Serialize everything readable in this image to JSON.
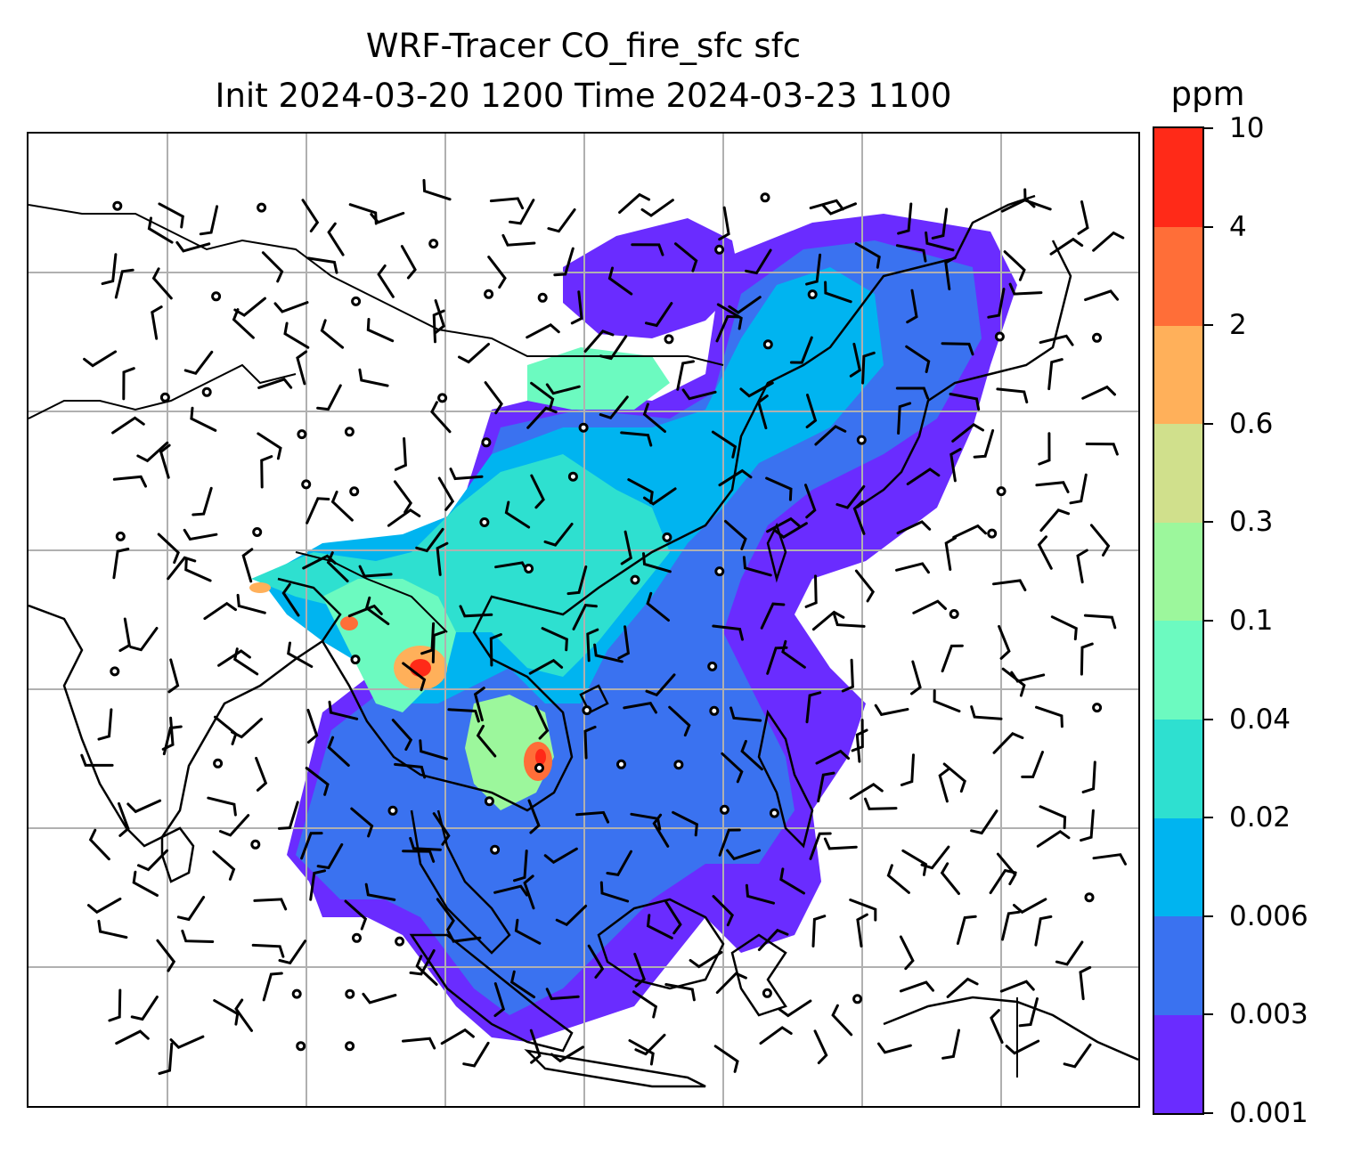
{
  "title": {
    "line1": "WRF-Tracer CO_fire_sfc sfc",
    "line2": "Init 2024-03-20 1200 Time 2024-03-23 1100"
  },
  "colorbar": {
    "unit": "ppm",
    "ticks": [
      "0.001",
      "0.003",
      "0.006",
      "0.02",
      "0.04",
      "0.1",
      "0.3",
      "0.6",
      "2",
      "4",
      "10"
    ],
    "colors": [
      "#6a2cff",
      "#3a72f0",
      "#00b4f0",
      "#2ee0d0",
      "#6cfac0",
      "#9cf79c",
      "#d0e08c",
      "#ffb05a",
      "#ff6e38",
      "#ff2a18"
    ]
  },
  "map": {
    "variable": "CO_fire_sfc",
    "level": "sfc",
    "field_colors": {
      "low": "#6a2cff",
      "mid": "#3a72f0",
      "cyan": "#00b4f0",
      "teal": "#2ee0d0",
      "green": "#6cfac0",
      "hot": "#ff2a18"
    },
    "gridline_color": "#b0b0b0",
    "coastline_color": "#000000"
  }
}
